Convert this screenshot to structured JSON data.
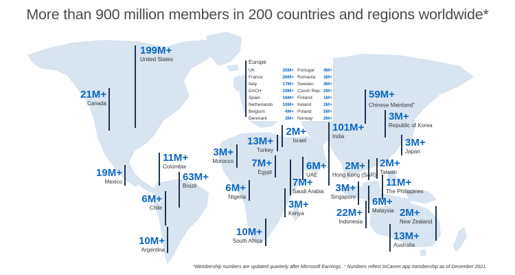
{
  "title": "More than 900 million members in 200 countries and regions worldwide*",
  "regions": [
    {
      "id": "united-states",
      "value": "199M+",
      "name": "United States"
    },
    {
      "id": "canada",
      "value": "21M+",
      "name": "Canada"
    },
    {
      "id": "mexico",
      "value": "19M+",
      "name": "Mexico"
    },
    {
      "id": "colombia",
      "value": "11M+",
      "name": "Colombia"
    },
    {
      "id": "brazil",
      "value": "63M+",
      "name": "Brazil"
    },
    {
      "id": "chile",
      "value": "6M+",
      "name": "Chile"
    },
    {
      "id": "argentina",
      "value": "10M+",
      "name": "Argentina"
    },
    {
      "id": "morocco",
      "value": "3M+",
      "name": "Morocco"
    },
    {
      "id": "turkey",
      "value": "13M+",
      "name": "Turkey"
    },
    {
      "id": "israel",
      "value": "2M+",
      "name": "Israel"
    },
    {
      "id": "egypt",
      "value": "7M+",
      "name": "Egypt"
    },
    {
      "id": "nigeria",
      "value": "6M+",
      "name": "Nigeria"
    },
    {
      "id": "uae",
      "value": "6M+",
      "name": "UAE"
    },
    {
      "id": "saudi-arabia",
      "value": "7M+",
      "name": "Saudi Arabia"
    },
    {
      "id": "kenya",
      "value": "3M+",
      "name": "Kenya"
    },
    {
      "id": "south-africa",
      "value": "10M+",
      "name": "South Africa"
    },
    {
      "id": "india",
      "value": "101M+",
      "name": "India"
    },
    {
      "id": "hong-kong",
      "value": "2M+",
      "name": "Hong Kong (SAR)"
    },
    {
      "id": "singapore",
      "value": "3M+",
      "name": "Singapore"
    },
    {
      "id": "indonesia",
      "value": "22M+",
      "name": "Indonesia"
    },
    {
      "id": "malaysia",
      "value": "6M+",
      "name": "Malaysia"
    },
    {
      "id": "chinese-mainland",
      "value": "59M+",
      "name": "Chinese Mainland",
      "marker": "+"
    },
    {
      "id": "korea",
      "value": "3M+",
      "name": "Republic of Korea"
    },
    {
      "id": "japan",
      "value": "3M+",
      "name": "Japan"
    },
    {
      "id": "taiwan",
      "value": "2M+",
      "name": "Taiwan"
    },
    {
      "id": "philippines",
      "value": "11M+",
      "name": "The Philippines"
    },
    {
      "id": "new-zealand",
      "value": "2M+",
      "name": "New Zealand"
    },
    {
      "id": "australia",
      "value": "13M+",
      "name": "Australia"
    }
  ],
  "europe": {
    "title": "Europe",
    "rows": [
      {
        "c1": "UK",
        "v1": "35M+",
        "c2": "Portugal",
        "v2": "4M+"
      },
      {
        "c1": "France",
        "v1": "26M+",
        "c2": "Romania",
        "v2": "3M+"
      },
      {
        "c1": "Italy",
        "v1": "17M+",
        "c2": "Sweden",
        "v2": "4M+"
      },
      {
        "c1": "DACH",
        "v1": "19M+",
        "c2": "Czech Rep.",
        "v2": "2M+"
      },
      {
        "c1": "Spain",
        "v1": "16M+",
        "c2": "Finland",
        "v2": "1M+"
      },
      {
        "c1": "Netherlands",
        "v1": "10M+",
        "c2": "Ireland",
        "v2": "2M+"
      },
      {
        "c1": "Belgium",
        "v1": "4M+",
        "c2": "Poland",
        "v2": "5M+"
      },
      {
        "c1": "Denmark",
        "v1": "3M+",
        "c2": "Norway",
        "v2": "2M+"
      }
    ]
  },
  "footnote": "*Membership numbers are updated quarterly after Microsoft Earnings. ⁺ Numbers reflect InCareer app membership as of December 2021.",
  "colors": {
    "land": "#d8e4f0",
    "value": "#0a66c2",
    "text": "#333333",
    "line": "#1e3350",
    "title": "#4a4a4a"
  }
}
